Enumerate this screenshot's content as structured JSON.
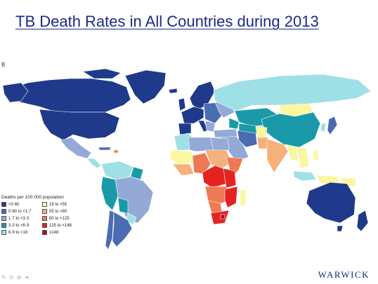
{
  "title": "TB Death Rates in All Countries during 2013",
  "panel_label": "B",
  "legend": {
    "title": "Deaths per 100 000 population",
    "items": [
      {
        "label": "<0·60",
        "color": "#1f3a8a"
      },
      {
        "label": "18 to <55",
        "color": "#fbf6a0"
      },
      {
        "label": "0·60 to <1·7",
        "color": "#4a6cb3"
      },
      {
        "label": "55 to <80",
        "color": "#f6b07a"
      },
      {
        "label": "1·7 to <3·3",
        "color": "#93a9d6"
      },
      {
        "label": "80 to <125",
        "color": "#ee7a55"
      },
      {
        "label": "3·3 to <6·9",
        "color": "#1a9aa8"
      },
      {
        "label": "125 to <148",
        "color": "#e52421"
      },
      {
        "label": "6·9 to <18",
        "color": "#9fe0e7"
      },
      {
        "label": "≥148",
        "color": "#b00d1e"
      }
    ]
  },
  "nav_icons": [
    "pen-icon",
    "circle-icon",
    "circle-minus-icon",
    "arrow-right-icon"
  ],
  "nav_glyphs": "✎ ⊙ ⊖ ➔",
  "logo_text": "WARWICK",
  "colors": {
    "title": "#1a2a8c",
    "logo": "#1d2a6a",
    "border": "#ffffff"
  }
}
